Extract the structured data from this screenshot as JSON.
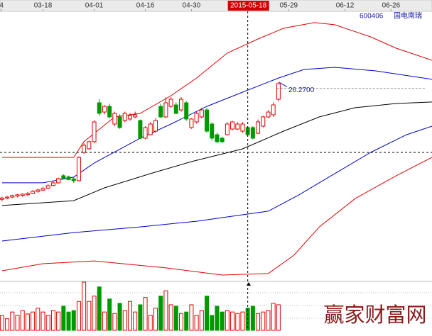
{
  "chart_data": {
    "type": "candlestick",
    "code": "600406",
    "name": "国电南瑞",
    "watermark": "赢家财富网",
    "xlim": [
      -0.4,
      84
    ],
    "xticks": [
      {
        "value": -0.1,
        "label": "4"
      },
      {
        "value": 8,
        "label": "03-18"
      },
      {
        "value": 18,
        "label": "04-01"
      },
      {
        "value": 28,
        "label": "04-16"
      },
      {
        "value": 37,
        "label": "04-30"
      },
      {
        "value": 56,
        "label": "05-29"
      },
      {
        "value": 67,
        "label": "06-12"
      },
      {
        "value": 76,
        "label": "06-26"
      }
    ],
    "ylim": [
      12,
      32
    ],
    "up_color": "#e00000",
    "down_color": "#009a00",
    "x": [
      0,
      1,
      2,
      3,
      4,
      5,
      6,
      7,
      8,
      9,
      10,
      11,
      12,
      13,
      14,
      15,
      16,
      17,
      18,
      19,
      20,
      21,
      22,
      23,
      24,
      25,
      26,
      27,
      28,
      29,
      30,
      31,
      32,
      33,
      34,
      35,
      36,
      37,
      38,
      39,
      40,
      41,
      42,
      43,
      44,
      45,
      46,
      47,
      48,
      49,
      50,
      51,
      52,
      53,
      54
    ],
    "open": [
      17.85,
      17.95,
      18.02,
      18.1,
      18.15,
      18.2,
      18.3,
      18.45,
      18.55,
      18.7,
      18.9,
      19.1,
      19.64,
      19.55,
      19.4,
      19.26,
      21.41,
      21.68,
      22.22,
      25.17,
      24.47,
      24.9,
      23.56,
      24.1,
      23.83,
      23.94,
      24.1,
      23.83,
      22.49,
      22.75,
      23.02,
      24.9,
      24.1,
      24.9,
      25.01,
      24.63,
      25.17,
      23.29,
      23.72,
      24.1,
      24.63,
      23.56,
      22.75,
      22.49,
      22.75,
      23.18,
      23.18,
      23.02,
      23.29,
      23.29,
      22.86,
      23.4,
      24.1,
      24.26,
      25.44
    ],
    "high": [
      18.05,
      18.1,
      18.2,
      18.25,
      18.3,
      18.4,
      18.55,
      18.65,
      18.8,
      19.0,
      19.2,
      19.5,
      19.75,
      19.65,
      19.5,
      21.1,
      22.1,
      22.3,
      23.85,
      25.45,
      25.0,
      25.1,
      24.5,
      24.3,
      24.5,
      24.4,
      24.5,
      23.9,
      23.4,
      23.7,
      24.0,
      25.1,
      25.6,
      25.6,
      25.2,
      25.6,
      25.3,
      24.0,
      24.5,
      24.8,
      24.8,
      23.7,
      22.9,
      22.6,
      23.7,
      23.8,
      23.7,
      23.7,
      23.4,
      23.4,
      23.9,
      24.2,
      24.6,
      25.2,
      26.73
    ],
    "low": [
      17.7,
      17.85,
      17.95,
      18.0,
      18.05,
      18.1,
      18.25,
      18.35,
      18.5,
      18.65,
      18.85,
      19.05,
      19.4,
      19.3,
      19.1,
      19.2,
      21.3,
      21.6,
      22.1,
      24.2,
      24.3,
      24.0,
      23.4,
      23.2,
      23.7,
      23.8,
      24.0,
      22.4,
      22.4,
      22.7,
      22.9,
      24.0,
      24.0,
      24.8,
      24.3,
      24.5,
      23.8,
      23.2,
      23.6,
      24.0,
      22.9,
      22.3,
      22.1,
      22.1,
      22.7,
      23.1,
      23.1,
      22.9,
      22.6,
      22.4,
      22.8,
      23.3,
      24.0,
      24.1,
      25.3
    ],
    "close": [
      17.95,
      18.02,
      18.13,
      18.19,
      18.24,
      18.29,
      18.45,
      18.56,
      18.67,
      18.88,
      19.1,
      19.42,
      19.45,
      19.35,
      19.26,
      21.03,
      21.95,
      22.22,
      23.72,
      24.37,
      24.9,
      24.1,
      24.37,
      23.29,
      24.37,
      24.2,
      24.26,
      22.49,
      23.29,
      23.56,
      23.83,
      24.1,
      25.17,
      25.44,
      24.37,
      25.44,
      23.94,
      23.94,
      24.37,
      24.63,
      23.02,
      22.49,
      22.22,
      22.22,
      23.56,
      23.72,
      23.56,
      23.56,
      22.75,
      22.49,
      23.72,
      24.1,
      24.47,
      25.01,
      26.62
    ],
    "lines": [
      {
        "color": "#e00000",
        "x": [
          0,
          14,
          16,
          22,
          27,
          33,
          38,
          44,
          50,
          55,
          61,
          65,
          72,
          77,
          84
        ],
        "values": [
          21.03,
          21.03,
          22.22,
          24.1,
          24.37,
          25.71,
          27.05,
          28.94,
          30.01,
          30.82,
          31.25,
          31.09,
          30.17,
          29.31,
          28.4
        ]
      },
      {
        "color": "#0000cc",
        "x": [
          0,
          8,
          14,
          18,
          27,
          33,
          40,
          47,
          54,
          59,
          65,
          73,
          84
        ],
        "values": [
          19.1,
          19.1,
          19.53,
          20.6,
          22.49,
          23.56,
          24.9,
          25.98,
          27.05,
          27.7,
          27.86,
          27.59,
          26.95
        ]
      },
      {
        "color": "#000000",
        "x": [
          0,
          14,
          20,
          29,
          37,
          47,
          55,
          62,
          69,
          77,
          84
        ],
        "values": [
          17.38,
          17.75,
          18.72,
          19.8,
          20.71,
          21.68,
          23.02,
          24.1,
          24.8,
          25.12,
          25.23
        ]
      },
      {
        "color": "#0000cc",
        "x": [
          0,
          14,
          27,
          38,
          52,
          58,
          65,
          72,
          79,
          84
        ],
        "values": [
          14.69,
          15.33,
          15.76,
          16.19,
          16.95,
          18.19,
          19.8,
          21.41,
          22.75,
          23.4
        ]
      },
      {
        "color": "#e00000",
        "x": [
          0,
          8,
          18,
          32,
          43,
          52,
          57,
          62,
          69,
          77,
          84
        ],
        "values": [
          12.43,
          12.97,
          13.18,
          12.65,
          12.11,
          12.22,
          13.61,
          15.76,
          17.91,
          19.64,
          21.03
        ]
      }
    ],
    "price_line": {
      "value": 26.27,
      "label": "26.2700"
    },
    "crosshair": {
      "x": {
        "value": 48,
        "label": "2015-05-18"
      },
      "y": 21.41
    },
    "volume": {
      "ylim": [
        0,
        100
      ],
      "values": [
        31,
        24,
        38,
        31,
        41,
        34,
        38,
        46,
        38,
        31,
        41,
        38,
        50,
        38,
        41,
        60,
        100,
        60,
        71,
        90,
        38,
        65,
        35,
        56,
        41,
        60,
        38,
        53,
        68,
        31,
        46,
        71,
        82,
        53,
        50,
        35,
        38,
        53,
        31,
        41,
        71,
        31,
        50,
        38,
        41,
        38,
        35,
        38,
        46,
        50,
        35,
        38,
        41,
        56,
        53
      ]
    }
  }
}
